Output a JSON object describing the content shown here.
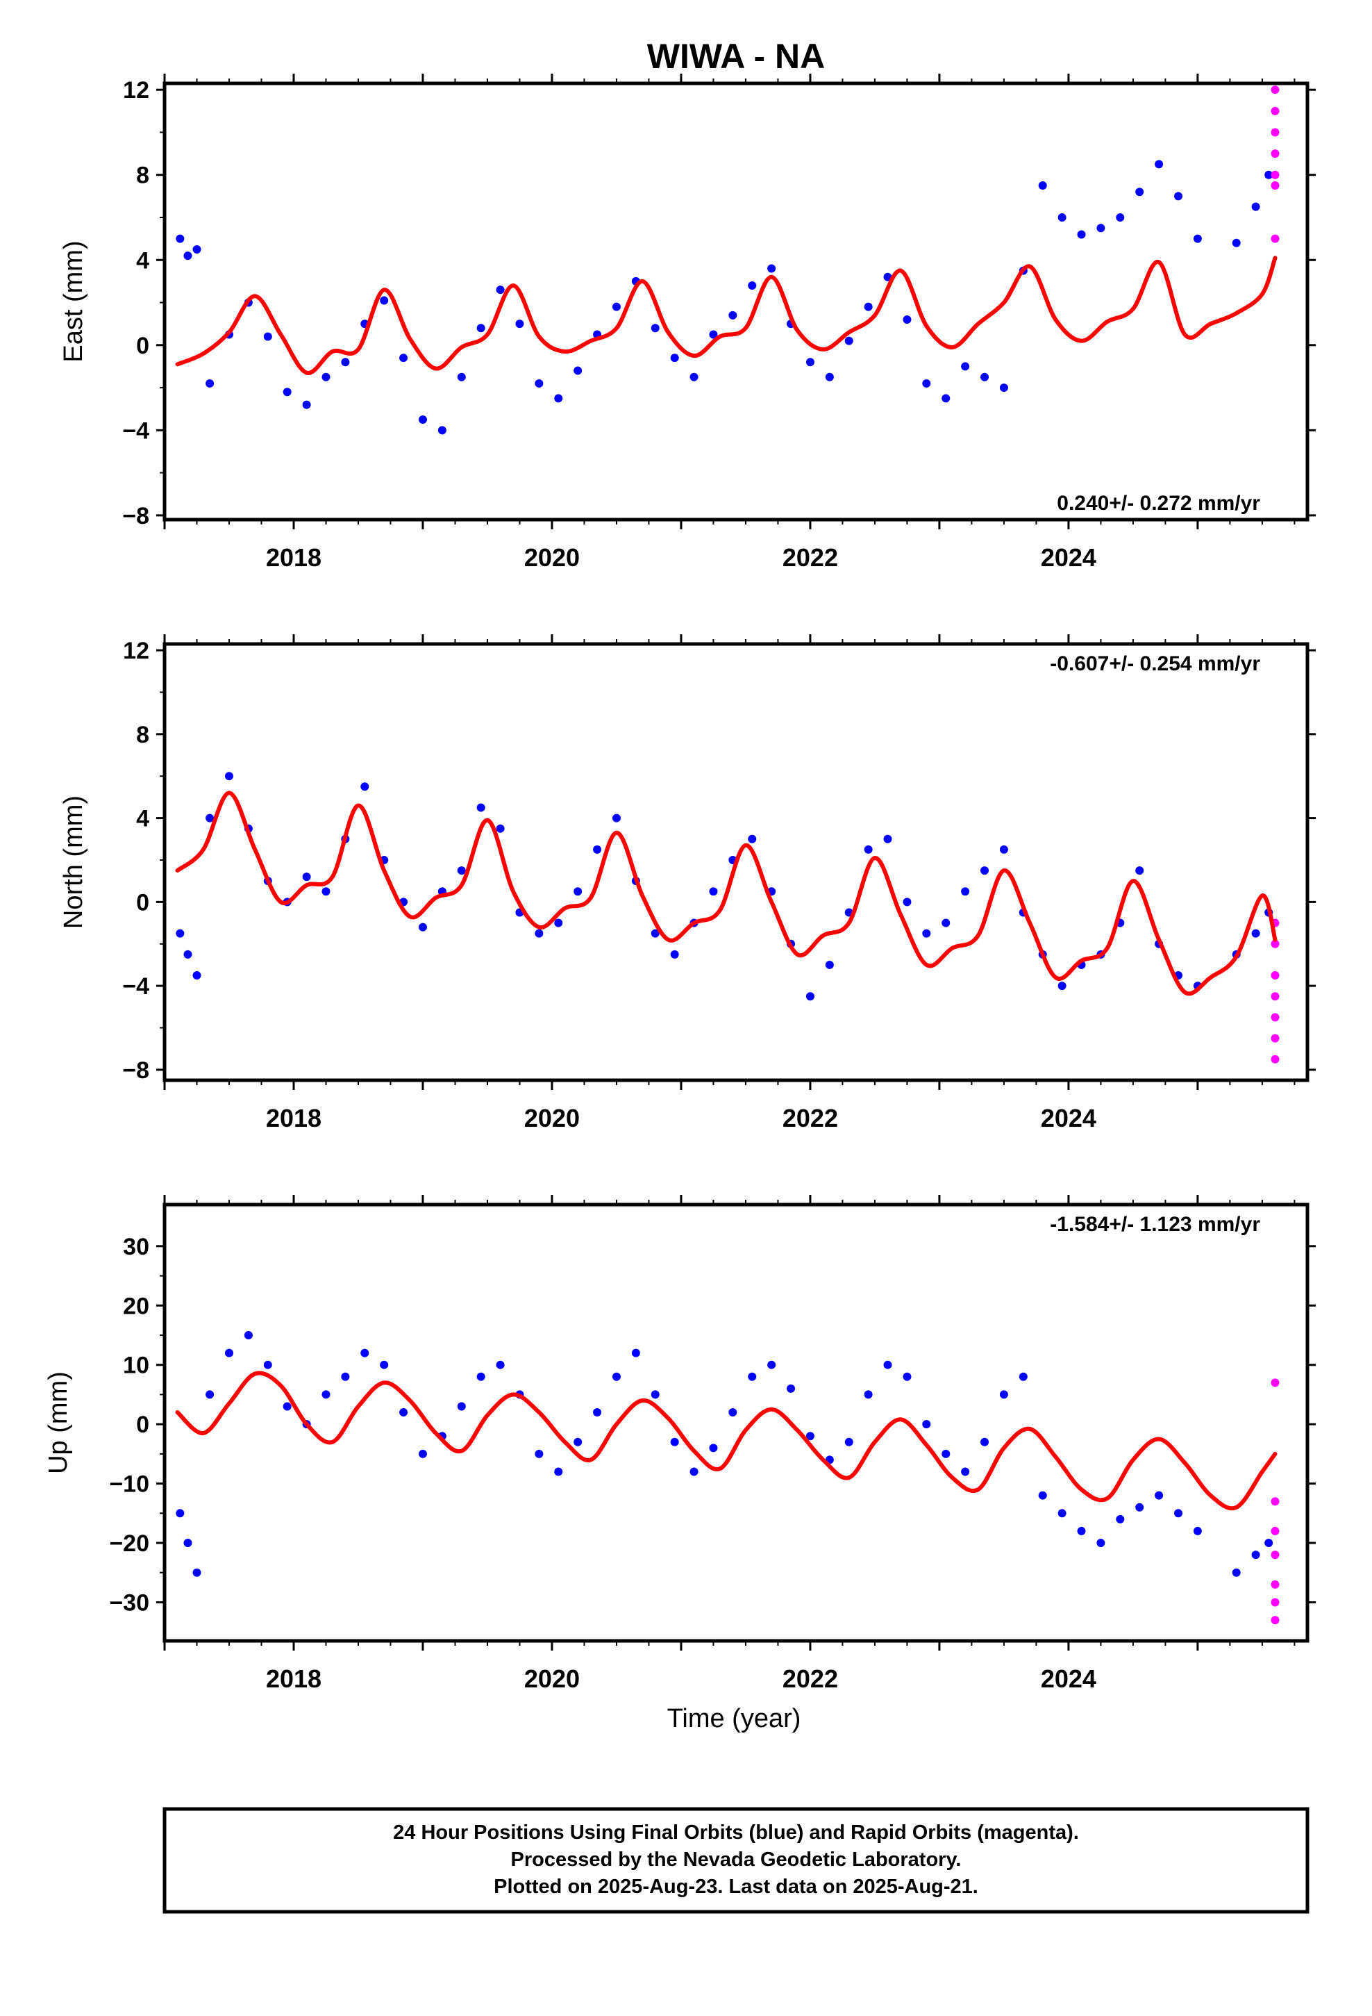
{
  "title": "WIWA - NA",
  "xlabel": "Time (year)",
  "footer": {
    "line1": "24 Hour Positions Using Final Orbits (blue) and Rapid Orbits (magenta).",
    "line2": "Processed by the Nevada Geodetic Laboratory.",
    "line3": "Plotted on 2025-Aug-23. Last data on 2025-Aug-21."
  },
  "colors": {
    "final": "#0000ff",
    "rapid": "#ff00ff",
    "model": "#ff0000"
  },
  "chart_data": [
    {
      "type": "scatter",
      "ylabel": "East (mm)",
      "rate_label": "0.240+/- 0.272 mm/yr",
      "xlim": [
        2017.0,
        2025.85
      ],
      "ylim": [
        -8.2,
        12.3
      ],
      "xticks": [
        2018,
        2020,
        2022,
        2024
      ],
      "xtick_labels": [
        "2018",
        "2020",
        "2022",
        "2024"
      ],
      "yticks": [
        -8,
        -4,
        0,
        4,
        8,
        12
      ],
      "ytick_labels": [
        "−8",
        "−4",
        "0",
        "4",
        "8",
        "12"
      ],
      "model": {
        "name": "model fit",
        "x": [
          2017.1,
          2017.3,
          2017.5,
          2017.7,
          2017.9,
          2018.1,
          2018.3,
          2018.5,
          2018.7,
          2018.9,
          2019.1,
          2019.3,
          2019.5,
          2019.7,
          2019.9,
          2020.1,
          2020.3,
          2020.5,
          2020.7,
          2020.9,
          2021.1,
          2021.3,
          2021.5,
          2021.7,
          2021.9,
          2022.1,
          2022.3,
          2022.5,
          2022.7,
          2022.9,
          2023.1,
          2023.3,
          2023.5,
          2023.7,
          2023.9,
          2024.1,
          2024.3,
          2024.5,
          2024.7,
          2024.9,
          2025.1,
          2025.3,
          2025.5,
          2025.6
        ],
        "y": [
          -0.9,
          -0.4,
          0.6,
          2.3,
          0.5,
          -1.3,
          -0.3,
          -0.2,
          2.6,
          0.3,
          -1.1,
          -0.1,
          0.5,
          2.8,
          0.4,
          -0.3,
          0.2,
          0.8,
          3.0,
          0.6,
          -0.5,
          0.4,
          0.8,
          3.2,
          0.7,
          -0.2,
          0.6,
          1.4,
          3.5,
          0.9,
          -0.1,
          1.0,
          2.0,
          3.7,
          1.2,
          0.2,
          1.1,
          1.7,
          3.9,
          0.5,
          1.0,
          1.5,
          2.4,
          4.1
        ]
      },
      "final": {
        "name": "Final Orbits",
        "x": [
          2017.12,
          2017.18,
          2017.25,
          2017.35,
          2017.5,
          2017.65,
          2017.8,
          2017.95,
          2018.1,
          2018.25,
          2018.4,
          2018.55,
          2018.7,
          2018.85,
          2019.0,
          2019.15,
          2019.3,
          2019.45,
          2019.6,
          2019.75,
          2019.9,
          2020.05,
          2020.2,
          2020.35,
          2020.5,
          2020.65,
          2020.8,
          2020.95,
          2021.1,
          2021.25,
          2021.4,
          2021.55,
          2021.7,
          2021.85,
          2022.0,
          2022.15,
          2022.3,
          2022.45,
          2022.6,
          2022.75,
          2022.9,
          2023.05,
          2023.2,
          2023.35,
          2023.5,
          2023.65,
          2023.8,
          2023.95,
          2024.1,
          2024.25,
          2024.4,
          2024.55,
          2024.7,
          2024.85,
          2025.0,
          2025.3,
          2025.45,
          2025.55
        ],
        "y": [
          5.0,
          4.2,
          4.5,
          -1.8,
          0.5,
          2.0,
          0.4,
          -2.2,
          -2.8,
          -1.5,
          -0.8,
          1.0,
          2.1,
          -0.6,
          -3.5,
          -4.0,
          -1.5,
          0.8,
          2.6,
          1.0,
          -1.8,
          -2.5,
          -1.2,
          0.5,
          1.8,
          3.0,
          0.8,
          -0.6,
          -1.5,
          0.5,
          1.4,
          2.8,
          3.6,
          1.0,
          -0.8,
          -1.5,
          0.2,
          1.8,
          3.2,
          1.2,
          -1.8,
          -2.5,
          -1.0,
          -1.5,
          -2.0,
          3.5,
          7.5,
          6.0,
          5.2,
          5.5,
          6.0,
          7.2,
          8.5,
          7.0,
          5.0,
          4.8,
          6.5,
          8.0
        ]
      },
      "rapid": {
        "name": "Rapid Orbits",
        "x": [
          2025.6,
          2025.6,
          2025.6,
          2025.6,
          2025.6,
          2025.6,
          2025.6
        ],
        "y": [
          12.0,
          11.0,
          10.0,
          9.0,
          8.0,
          7.5,
          5.0
        ]
      }
    },
    {
      "type": "scatter",
      "ylabel": "North (mm)",
      "rate_label": "-0.607+/- 0.254 mm/yr",
      "xlim": [
        2017.0,
        2025.85
      ],
      "ylim": [
        -8.5,
        12.3
      ],
      "xticks": [
        2018,
        2020,
        2022,
        2024
      ],
      "xtick_labels": [
        "2018",
        "2020",
        "2022",
        "2024"
      ],
      "yticks": [
        -8,
        -4,
        0,
        4,
        8,
        12
      ],
      "ytick_labels": [
        "−8",
        "−4",
        "0",
        "4",
        "8",
        "12"
      ],
      "model": {
        "name": "model fit",
        "x": [
          2017.1,
          2017.3,
          2017.5,
          2017.7,
          2017.9,
          2018.1,
          2018.3,
          2018.5,
          2018.7,
          2018.9,
          2019.1,
          2019.3,
          2019.5,
          2019.7,
          2019.9,
          2020.1,
          2020.3,
          2020.5,
          2020.7,
          2020.9,
          2021.1,
          2021.3,
          2021.5,
          2021.7,
          2021.9,
          2022.1,
          2022.3,
          2022.5,
          2022.7,
          2022.9,
          2023.1,
          2023.3,
          2023.5,
          2023.7,
          2023.9,
          2024.1,
          2024.3,
          2024.5,
          2024.7,
          2024.9,
          2025.1,
          2025.3,
          2025.5,
          2025.6
        ],
        "y": [
          1.5,
          2.5,
          5.2,
          2.5,
          0.0,
          0.8,
          1.2,
          4.6,
          1.5,
          -0.7,
          0.2,
          0.8,
          3.9,
          0.5,
          -1.2,
          -0.3,
          0.2,
          3.3,
          0.3,
          -1.8,
          -1.0,
          -0.4,
          2.7,
          0.0,
          -2.5,
          -1.6,
          -1.0,
          2.1,
          -0.6,
          -3.0,
          -2.2,
          -1.6,
          1.5,
          -1.0,
          -3.6,
          -2.8,
          -2.2,
          1.0,
          -1.8,
          -4.3,
          -3.6,
          -2.6,
          0.3,
          -1.8
        ]
      },
      "final": {
        "name": "Final Orbits",
        "x": [
          2017.12,
          2017.18,
          2017.25,
          2017.35,
          2017.5,
          2017.65,
          2017.8,
          2017.95,
          2018.1,
          2018.25,
          2018.4,
          2018.55,
          2018.7,
          2018.85,
          2019.0,
          2019.15,
          2019.3,
          2019.45,
          2019.6,
          2019.75,
          2019.9,
          2020.05,
          2020.2,
          2020.35,
          2020.5,
          2020.65,
          2020.8,
          2020.95,
          2021.1,
          2021.25,
          2021.4,
          2021.55,
          2021.7,
          2021.85,
          2022.0,
          2022.15,
          2022.3,
          2022.45,
          2022.6,
          2022.75,
          2022.9,
          2023.05,
          2023.2,
          2023.35,
          2023.5,
          2023.65,
          2023.8,
          2023.95,
          2024.1,
          2024.25,
          2024.4,
          2024.55,
          2024.7,
          2024.85,
          2025.0,
          2025.3,
          2025.45,
          2025.55
        ],
        "y": [
          -1.5,
          -2.5,
          -3.5,
          4.0,
          6.0,
          3.5,
          1.0,
          0.0,
          1.2,
          0.5,
          3.0,
          5.5,
          2.0,
          0.0,
          -1.2,
          0.5,
          1.5,
          4.5,
          3.5,
          -0.5,
          -1.5,
          -1.0,
          0.5,
          2.5,
          4.0,
          1.0,
          -1.5,
          -2.5,
          -1.0,
          0.5,
          2.0,
          3.0,
          0.5,
          -2.0,
          -4.5,
          -3.0,
          -0.5,
          2.5,
          3.0,
          0.0,
          -1.5,
          -1.0,
          0.5,
          1.5,
          2.5,
          -0.5,
          -2.5,
          -4.0,
          -3.0,
          -2.5,
          -1.0,
          1.5,
          -2.0,
          -3.5,
          -4.0,
          -2.5,
          -1.5,
          -0.5
        ]
      },
      "rapid": {
        "name": "Rapid Orbits",
        "x": [
          2025.6,
          2025.6,
          2025.6,
          2025.6,
          2025.6,
          2025.6,
          2025.6
        ],
        "y": [
          -1.0,
          -2.0,
          -3.5,
          -4.5,
          -5.5,
          -6.5,
          -7.5
        ]
      }
    },
    {
      "type": "scatter",
      "ylabel": "Up (mm)",
      "rate_label": "-1.584+/- 1.123 mm/yr",
      "xlim": [
        2017.0,
        2025.85
      ],
      "ylim": [
        -36.5,
        37.0
      ],
      "xticks": [
        2018,
        2020,
        2022,
        2024
      ],
      "xtick_labels": [
        "2018",
        "2020",
        "2022",
        "2024"
      ],
      "yticks": [
        -30,
        -20,
        -10,
        0,
        10,
        20,
        30
      ],
      "ytick_labels": [
        "−30",
        "−20",
        "−10",
        "0",
        "10",
        "20",
        "30"
      ],
      "model": {
        "name": "model fit",
        "x": [
          2017.1,
          2017.3,
          2017.5,
          2017.7,
          2017.9,
          2018.1,
          2018.3,
          2018.5,
          2018.7,
          2018.9,
          2019.1,
          2019.3,
          2019.5,
          2019.7,
          2019.9,
          2020.1,
          2020.3,
          2020.5,
          2020.7,
          2020.9,
          2021.1,
          2021.3,
          2021.5,
          2021.7,
          2021.9,
          2022.1,
          2022.3,
          2022.5,
          2022.7,
          2022.9,
          2023.1,
          2023.3,
          2023.5,
          2023.7,
          2023.9,
          2024.1,
          2024.3,
          2024.5,
          2024.7,
          2024.9,
          2025.1,
          2025.3,
          2025.5,
          2025.6
        ],
        "y": [
          2.0,
          -1.5,
          3.5,
          8.5,
          6.5,
          0.0,
          -3.0,
          3.0,
          7.0,
          4.0,
          -1.5,
          -4.5,
          1.5,
          5.0,
          2.0,
          -3.0,
          -6.0,
          0.0,
          4.0,
          1.0,
          -4.5,
          -7.5,
          -1.0,
          2.5,
          -1.0,
          -6.0,
          -9.0,
          -3.0,
          0.8,
          -3.5,
          -9.0,
          -11.0,
          -4.0,
          -0.8,
          -5.5,
          -11.0,
          -12.5,
          -6.0,
          -2.5,
          -6.5,
          -12.0,
          -14.0,
          -8.0,
          -5.0
        ]
      },
      "final": {
        "name": "Final Orbits",
        "x": [
          2017.12,
          2017.18,
          2017.25,
          2017.35,
          2017.5,
          2017.65,
          2017.8,
          2017.95,
          2018.1,
          2018.25,
          2018.4,
          2018.55,
          2018.7,
          2018.85,
          2019.0,
          2019.15,
          2019.3,
          2019.45,
          2019.6,
          2019.75,
          2019.9,
          2020.05,
          2020.2,
          2020.35,
          2020.5,
          2020.65,
          2020.8,
          2020.95,
          2021.1,
          2021.25,
          2021.4,
          2021.55,
          2021.7,
          2021.85,
          2022.0,
          2022.15,
          2022.3,
          2022.45,
          2022.6,
          2022.75,
          2022.9,
          2023.05,
          2023.2,
          2023.35,
          2023.5,
          2023.65,
          2023.8,
          2023.95,
          2024.1,
          2024.25,
          2024.4,
          2024.55,
          2024.7,
          2024.85,
          2025.0,
          2025.3,
          2025.45,
          2025.55
        ],
        "y": [
          -15.0,
          -20.0,
          -25.0,
          5.0,
          12.0,
          15.0,
          10.0,
          3.0,
          0.0,
          5.0,
          8.0,
          12.0,
          10.0,
          2.0,
          -5.0,
          -2.0,
          3.0,
          8.0,
          10.0,
          5.0,
          -5.0,
          -8.0,
          -3.0,
          2.0,
          8.0,
          12.0,
          5.0,
          -3.0,
          -8.0,
          -4.0,
          2.0,
          8.0,
          10.0,
          6.0,
          -2.0,
          -6.0,
          -3.0,
          5.0,
          10.0,
          8.0,
          0.0,
          -5.0,
          -8.0,
          -3.0,
          5.0,
          8.0,
          -12.0,
          -15.0,
          -18.0,
          -20.0,
          -16.0,
          -14.0,
          -12.0,
          -15.0,
          -18.0,
          -25.0,
          -22.0,
          -20.0
        ]
      },
      "rapid": {
        "name": "Rapid Orbits",
        "x": [
          2025.6,
          2025.6,
          2025.6,
          2025.6,
          2025.6,
          2025.6,
          2025.6
        ],
        "y": [
          7.0,
          -13.0,
          -18.0,
          -22.0,
          -27.0,
          -30.0,
          -33.0
        ]
      }
    }
  ]
}
